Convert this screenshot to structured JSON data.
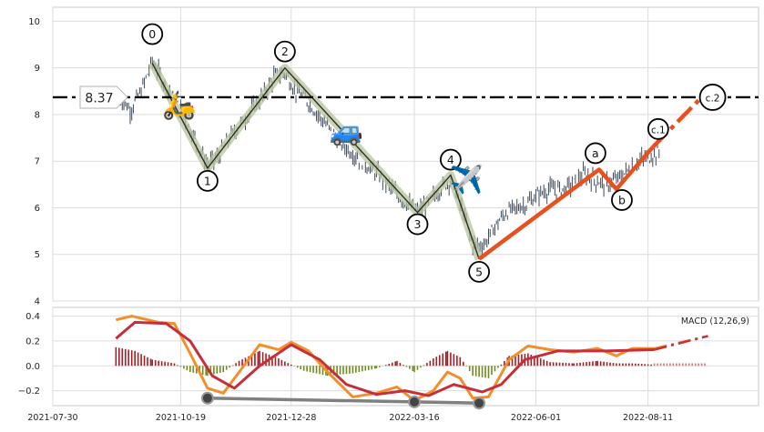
{
  "chart_data": [
    {
      "type": "candlestick",
      "panel": "price",
      "ylim": [
        4,
        10.3
      ],
      "yticks": [
        "4",
        "5",
        "6",
        "7",
        "8",
        "9",
        "10"
      ],
      "grid": true,
      "price_series": [
        [
          "2021-09-10",
          8.4
        ],
        [
          "2021-09-17",
          8.1
        ],
        [
          "2021-09-24",
          8.5
        ],
        [
          "2021-10-01",
          9.15
        ],
        [
          "2021-10-08",
          8.7
        ],
        [
          "2021-10-15",
          8.3
        ],
        [
          "2021-10-22",
          7.9
        ],
        [
          "2021-10-29",
          7.4
        ],
        [
          "2021-11-05",
          6.9
        ],
        [
          "2021-11-12",
          7.1
        ],
        [
          "2021-11-19",
          7.5
        ],
        [
          "2021-11-26",
          7.8
        ],
        [
          "2021-12-03",
          8.1
        ],
        [
          "2021-12-10",
          8.4
        ],
        [
          "2021-12-17",
          8.8
        ],
        [
          "2021-12-24",
          8.9
        ],
        [
          "2021-12-31",
          8.5
        ],
        [
          "2022-01-07",
          8.3
        ],
        [
          "2022-01-14",
          8.0
        ],
        [
          "2022-01-21",
          7.7
        ],
        [
          "2022-01-28",
          7.4
        ],
        [
          "2022-02-04",
          7.2
        ],
        [
          "2022-02-11",
          7.0
        ],
        [
          "2022-02-18",
          6.8
        ],
        [
          "2022-02-25",
          6.6
        ],
        [
          "2022-03-04",
          6.3
        ],
        [
          "2022-03-11",
          6.1
        ],
        [
          "2022-03-18",
          5.9
        ],
        [
          "2022-03-25",
          6.1
        ],
        [
          "2022-04-01",
          6.4
        ],
        [
          "2022-04-08",
          6.6
        ],
        [
          "2022-04-15",
          6.0
        ],
        [
          "2022-04-22",
          5.2
        ],
        [
          "2022-04-29",
          5.2
        ],
        [
          "2022-05-06",
          5.6
        ],
        [
          "2022-05-13",
          5.9
        ],
        [
          "2022-05-20",
          6.0
        ],
        [
          "2022-05-27",
          6.1
        ],
        [
          "2022-06-03",
          6.3
        ],
        [
          "2022-06-10",
          6.4
        ],
        [
          "2022-06-17",
          6.4
        ],
        [
          "2022-06-24",
          6.5
        ],
        [
          "2022-07-01",
          6.7
        ],
        [
          "2022-07-08",
          6.6
        ],
        [
          "2022-07-15",
          6.5
        ],
        [
          "2022-07-22",
          6.6
        ],
        [
          "2022-07-29",
          6.8
        ],
        [
          "2022-08-05",
          7.0
        ],
        [
          "2022-08-12",
          7.1
        ],
        [
          "2022-08-19",
          7.2
        ]
      ],
      "hline": {
        "value": 8.37,
        "label": "8.37"
      },
      "wave_labels": [
        {
          "label": "0",
          "date": "2021-10-01",
          "value": 9.1
        },
        {
          "label": "1",
          "date": "2021-11-05",
          "value": 6.85
        },
        {
          "label": "2",
          "date": "2021-12-24",
          "value": 9.0
        },
        {
          "label": "3",
          "date": "2022-03-18",
          "value": 5.9
        },
        {
          "label": "4",
          "date": "2022-04-08",
          "value": 6.7
        },
        {
          "label": "5",
          "date": "2022-04-26",
          "value": 4.9
        },
        {
          "label": "a",
          "date": "2022-07-11",
          "value": 6.82
        },
        {
          "label": "b",
          "date": "2022-07-22",
          "value": 6.4
        },
        {
          "label": "c.1",
          "date": "2022-08-14",
          "value": 7.3
        },
        {
          "label": "c.2",
          "date": "2022-09-14",
          "value": 8.37
        }
      ],
      "icons": [
        "scooter-icon",
        "car-icon",
        "airplane-icon"
      ]
    },
    {
      "type": "line",
      "panel": "macd",
      "title": "MACD (12,26,9)",
      "ylim": [
        -0.32,
        0.47
      ],
      "yticks": [
        "−0.2",
        "0.0",
        "0.2",
        "0.4"
      ],
      "xticks": [
        "2021-07-30",
        "2021-10-19",
        "2021-12-28",
        "2022-03-16",
        "2022-06-01",
        "2022-08-11"
      ],
      "series": [
        {
          "color": "#f28e2b",
          "values": [
            [
              "2021-09-08",
              0.37
            ],
            [
              "2021-09-18",
              0.4
            ],
            [
              "2021-10-05",
              0.35
            ],
            [
              "2021-10-15",
              0.34
            ],
            [
              "2021-10-25",
              0.1
            ],
            [
              "2021-11-05",
              -0.18
            ],
            [
              "2021-11-15",
              -0.22
            ],
            [
              "2021-11-25",
              -0.05
            ],
            [
              "2021-12-08",
              0.17
            ],
            [
              "2021-12-20",
              0.13
            ],
            [
              "2021-12-28",
              0.19
            ],
            [
              "2022-01-08",
              0.12
            ],
            [
              "2022-01-20",
              -0.05
            ],
            [
              "2022-02-05",
              -0.25
            ],
            [
              "2022-02-20",
              -0.22
            ],
            [
              "2022-03-05",
              -0.17
            ],
            [
              "2022-03-16",
              -0.28
            ],
            [
              "2022-03-28",
              -0.2
            ],
            [
              "2022-04-06",
              -0.05
            ],
            [
              "2022-04-14",
              -0.1
            ],
            [
              "2022-04-22",
              -0.26
            ],
            [
              "2022-05-02",
              -0.25
            ],
            [
              "2022-05-15",
              0.05
            ],
            [
              "2022-05-27",
              0.16
            ],
            [
              "2022-06-10",
              0.13
            ],
            [
              "2022-06-25",
              0.11
            ],
            [
              "2022-07-10",
              0.14
            ],
            [
              "2022-07-22",
              0.08
            ],
            [
              "2022-08-01",
              0.14
            ],
            [
              "2022-08-15",
              0.14
            ]
          ]
        },
        {
          "color": "#c62e3a",
          "values": [
            [
              "2021-09-08",
              0.22
            ],
            [
              "2021-09-20",
              0.35
            ],
            [
              "2021-10-10",
              0.34
            ],
            [
              "2021-10-25",
              0.2
            ],
            [
              "2021-11-08",
              -0.08
            ],
            [
              "2021-11-22",
              -0.18
            ],
            [
              "2021-12-08",
              0.0
            ],
            [
              "2021-12-28",
              0.17
            ],
            [
              "2022-01-15",
              0.05
            ],
            [
              "2022-02-01",
              -0.15
            ],
            [
              "2022-02-20",
              -0.23
            ],
            [
              "2022-03-10",
              -0.2
            ],
            [
              "2022-03-25",
              -0.24
            ],
            [
              "2022-04-10",
              -0.15
            ],
            [
              "2022-04-28",
              -0.21
            ],
            [
              "2022-05-10",
              -0.15
            ],
            [
              "2022-05-25",
              0.05
            ],
            [
              "2022-06-15",
              0.12
            ],
            [
              "2022-07-15",
              0.12
            ],
            [
              "2022-08-15",
              0.13
            ]
          ]
        }
      ],
      "histogram": [
        [
          "2021-09-08",
          0.15
        ],
        [
          "2021-09-20",
          0.12
        ],
        [
          "2021-10-01",
          0.05
        ],
        [
          "2021-10-15",
          0.02
        ],
        [
          "2021-10-25",
          -0.05
        ],
        [
          "2021-11-05",
          -0.08
        ],
        [
          "2021-11-15",
          -0.05
        ],
        [
          "2021-11-25",
          0.04
        ],
        [
          "2021-12-08",
          0.12
        ],
        [
          "2021-12-20",
          0.06
        ],
        [
          "2022-01-05",
          -0.04
        ],
        [
          "2022-01-20",
          -0.08
        ],
        [
          "2022-02-05",
          -0.06
        ],
        [
          "2022-02-20",
          -0.02
        ],
        [
          "2022-03-05",
          0.04
        ],
        [
          "2022-03-16",
          -0.05
        ],
        [
          "2022-03-28",
          0.06
        ],
        [
          "2022-04-06",
          0.12
        ],
        [
          "2022-04-14",
          0.07
        ],
        [
          "2022-04-22",
          -0.08
        ],
        [
          "2022-05-02",
          -0.1
        ],
        [
          "2022-05-15",
          0.08
        ],
        [
          "2022-05-27",
          0.1
        ],
        [
          "2022-06-10",
          0.03
        ],
        [
          "2022-06-25",
          0.02
        ],
        [
          "2022-07-10",
          0.04
        ],
        [
          "2022-07-22",
          0.02
        ],
        [
          "2022-08-01",
          0.02
        ],
        [
          "2022-08-15",
          0.01
        ]
      ],
      "trendline": [
        [
          "2021-11-05",
          -0.26
        ],
        [
          "2022-03-16",
          -0.29
        ],
        [
          "2022-04-26",
          -0.3
        ]
      ]
    }
  ],
  "labels": {
    "hline_label": "8.37",
    "macd_title": "MACD (12,26,9)",
    "y_ticks_price": [
      "4",
      "5",
      "6",
      "7",
      "8",
      "9",
      "10"
    ],
    "y_ticks_macd": [
      "0.4",
      "0.2",
      "0.0",
      "−0.2"
    ],
    "x_ticks": [
      "2021-07-30",
      "2021-10-19",
      "2021-12-28",
      "2022-03-16",
      "2022-06-01",
      "2022-08-11"
    ],
    "waves": [
      "0",
      "1",
      "2",
      "3",
      "4",
      "5",
      "a",
      "b",
      "c.1",
      "c.2"
    ]
  }
}
